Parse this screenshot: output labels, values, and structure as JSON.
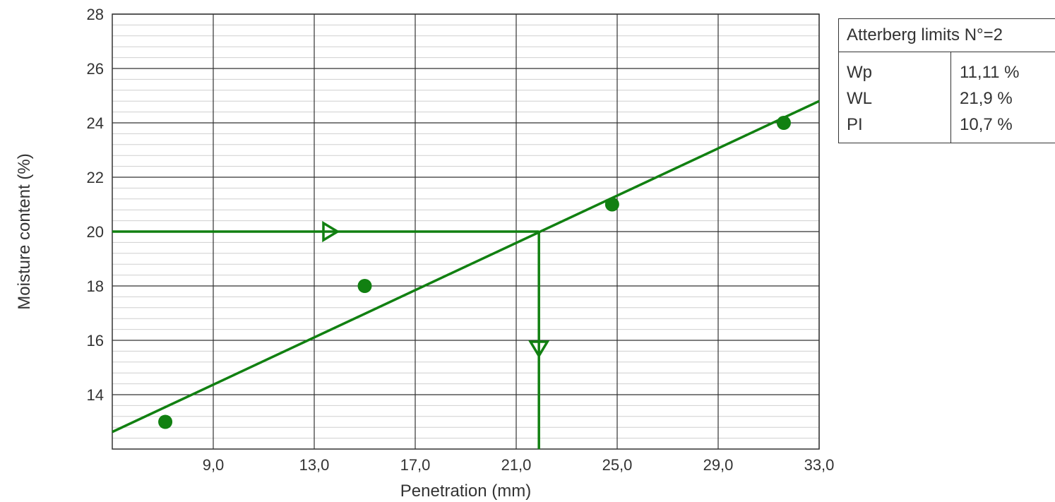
{
  "chart_data": {
    "type": "scatter",
    "title": "",
    "xlabel": "Penetration (mm)",
    "ylabel": "Moisture content (%)",
    "xlim": [
      5.0,
      33.0
    ],
    "ylim": [
      12.0,
      28.0
    ],
    "x_ticks": [
      9.0,
      13.0,
      17.0,
      21.0,
      25.0,
      29.0,
      33.0
    ],
    "x_tick_labels": [
      "9,0",
      "13,0",
      "17,0",
      "21,0",
      "25,0",
      "29,0",
      "33,0"
    ],
    "y_ticks": [
      14,
      16,
      18,
      20,
      22,
      24,
      26,
      28
    ],
    "y_tick_labels": [
      "14",
      "16",
      "18",
      "20",
      "22",
      "24",
      "26",
      "28"
    ],
    "y_minor_step": 0.4,
    "grid": true,
    "points": [
      {
        "x": 7.1,
        "y": 13.0
      },
      {
        "x": 15.0,
        "y": 18.0
      },
      {
        "x": 24.8,
        "y": 21.0
      },
      {
        "x": 31.6,
        "y": 24.0
      }
    ],
    "fit_line": {
      "x": [
        5.0,
        33.0
      ],
      "y": [
        12.63,
        24.8
      ]
    },
    "reference": {
      "penetration": 21.9,
      "moisture": 20.0
    },
    "color": "#118011"
  },
  "legend": {
    "header": "Atterberg limits N°=2",
    "rows": [
      {
        "name": "Wp",
        "value": "11,11 %"
      },
      {
        "name": "WL",
        "value": "21,9 %"
      },
      {
        "name": "PI",
        "value": "10,7 %"
      }
    ]
  }
}
